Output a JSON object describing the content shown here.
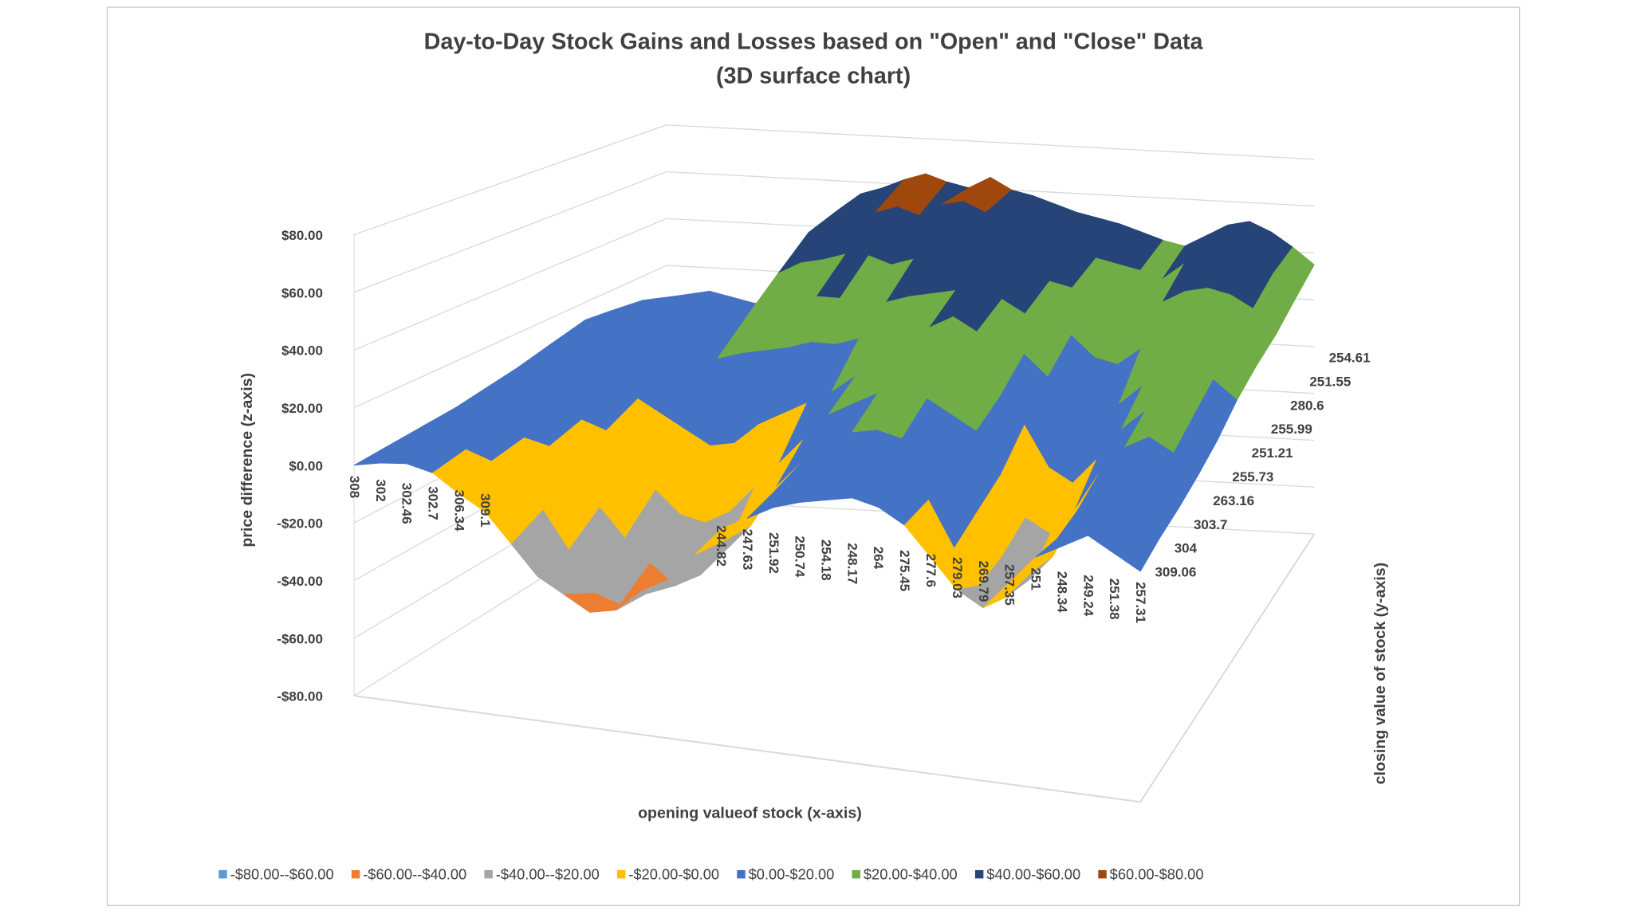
{
  "chart_data": {
    "type": "surface3d",
    "title": "Day-to-Day Stock Gains and Losses based on \"Open\" and \"Close\" Data",
    "subtitle": "(3D surface chart)",
    "xlabel": "opening valueof stock (x-axis)",
    "ylabel": "closing value of stock (y-axis)",
    "zlabel": "price difference (z-axis)",
    "categories": [
      "308",
      "302",
      "302.46",
      "302.7",
      "306.34",
      "309.1",
      null,
      null,
      null,
      null,
      null,
      null,
      null,
      null,
      "244.82",
      "247.63",
      "251.92",
      "250.74",
      "254.18",
      "248.17",
      "264",
      "275.45",
      "277.6",
      "279.03",
      "269.79",
      "257.35",
      "251",
      "248.34",
      "249.24",
      "251.38",
      "257.31"
    ],
    "y_categories": [
      "309.06",
      "304",
      "303.7",
      "263.16",
      "255.73",
      "251.21",
      "255.99",
      "280.6",
      "251.55",
      "254.61"
    ],
    "values": [
      [
        0,
        2,
        3,
        1,
        -5,
        -10,
        -20,
        -30,
        -35,
        -40,
        -38,
        -30,
        -25,
        -15,
        -5,
        0,
        5,
        8,
        10,
        12,
        10,
        5,
        -5,
        -15,
        -20,
        -10,
        0,
        5,
        10,
        5,
        0
      ],
      [
        1,
        4,
        5,
        3,
        0,
        -5,
        -15,
        -28,
        -42,
        -45,
        -40,
        -35,
        -28,
        -18,
        -8,
        2,
        8,
        12,
        15,
        14,
        12,
        6,
        -10,
        -22,
        -25,
        -15,
        -2,
        8,
        12,
        8,
        3
      ],
      [
        2,
        8,
        6,
        4,
        2,
        0,
        -8,
        -20,
        -30,
        -38,
        -45,
        -40,
        -30,
        -20,
        -5,
        5,
        12,
        18,
        20,
        18,
        15,
        10,
        -5,
        -20,
        -28,
        -18,
        0,
        10,
        15,
        10,
        5
      ],
      [
        3,
        10,
        8,
        6,
        5,
        3,
        0,
        -10,
        -20,
        -28,
        -30,
        -25,
        -15,
        -5,
        5,
        15,
        20,
        25,
        28,
        25,
        20,
        15,
        0,
        -15,
        -20,
        -10,
        5,
        15,
        20,
        15,
        8
      ],
      [
        4,
        12,
        15,
        10,
        8,
        6,
        5,
        0,
        -5,
        -10,
        -8,
        0,
        5,
        10,
        15,
        22,
        28,
        32,
        35,
        30,
        25,
        20,
        10,
        -5,
        -10,
        0,
        12,
        20,
        25,
        20,
        12
      ],
      [
        5,
        15,
        18,
        15,
        12,
        10,
        8,
        10,
        15,
        18,
        20,
        22,
        25,
        25,
        28,
        30,
        32,
        35,
        40,
        35,
        30,
        28,
        20,
        10,
        5,
        12,
        20,
        28,
        30,
        25,
        18
      ],
      [
        5,
        18,
        22,
        18,
        15,
        12,
        10,
        15,
        25,
        30,
        32,
        35,
        35,
        32,
        35,
        38,
        40,
        42,
        45,
        40,
        35,
        32,
        28,
        20,
        18,
        25,
        30,
        35,
        35,
        30,
        22
      ],
      [
        4,
        15,
        20,
        16,
        12,
        10,
        12,
        20,
        35,
        40,
        42,
        45,
        45,
        42,
        45,
        48,
        52,
        50,
        48,
        45,
        40,
        38,
        35,
        30,
        28,
        35,
        40,
        42,
        40,
        35,
        25
      ],
      [
        3,
        10,
        15,
        12,
        10,
        8,
        15,
        25,
        45,
        50,
        52,
        55,
        58,
        55,
        60,
        62,
        58,
        55,
        50,
        48,
        45,
        42,
        40,
        38,
        35,
        42,
        45,
        48,
        45,
        40,
        30
      ],
      [
        2,
        8,
        10,
        8,
        6,
        5,
        12,
        25,
        48,
        55,
        58,
        62,
        65,
        62,
        60,
        65,
        60,
        58,
        55,
        52,
        50,
        48,
        45,
        42,
        40,
        45,
        50,
        52,
        48,
        42,
        35
      ]
    ],
    "zlim": [
      -80,
      80
    ],
    "zticks": [
      {
        "value": -80,
        "label": "-$80.00"
      },
      {
        "value": -60,
        "label": "-$60.00"
      },
      {
        "value": -40,
        "label": "-$40.00"
      },
      {
        "value": -20,
        "label": "-$20.00"
      },
      {
        "value": 0,
        "label": "$0.00"
      },
      {
        "value": 20,
        "label": "$20.00"
      },
      {
        "value": 40,
        "label": "$40.00"
      },
      {
        "value": 60,
        "label": "$60.00"
      },
      {
        "value": 80,
        "label": "$80.00"
      }
    ],
    "grid": true,
    "legend_position": "bottom",
    "legend": [
      {
        "name": "-$80.00--$60.00",
        "color": "#5b9bd5"
      },
      {
        "name": "-$60.00--$40.00",
        "color": "#ed7d31"
      },
      {
        "name": "-$40.00--$20.00",
        "color": "#a5a5a5"
      },
      {
        "name": "-$20.00-$0.00",
        "color": "#ffc000"
      },
      {
        "name": "$0.00-$20.00",
        "color": "#4472c4"
      },
      {
        "name": "$20.00-$40.00",
        "color": "#70ad47"
      },
      {
        "name": "$40.00-$60.00",
        "color": "#264478"
      },
      {
        "name": "$60.00-$80.00",
        "color": "#9e480e"
      }
    ]
  }
}
